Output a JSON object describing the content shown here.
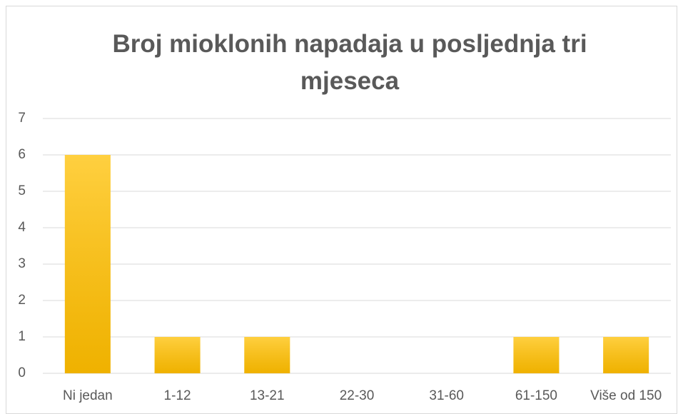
{
  "chart_data": {
    "type": "bar",
    "title": "Broj mioklonih napadaja u posljednja tri mjeseca",
    "categories": [
      "Ni jedan",
      "1-12",
      "13-21",
      "22-30",
      "31-60",
      "61-150",
      "Više od 150"
    ],
    "values": [
      6,
      1,
      1,
      0,
      0,
      1,
      1
    ],
    "color": "#ffc000",
    "ylim": [
      0,
      7
    ],
    "yticks": [
      0,
      1,
      2,
      3,
      4,
      5,
      6,
      7
    ],
    "grid": true
  }
}
